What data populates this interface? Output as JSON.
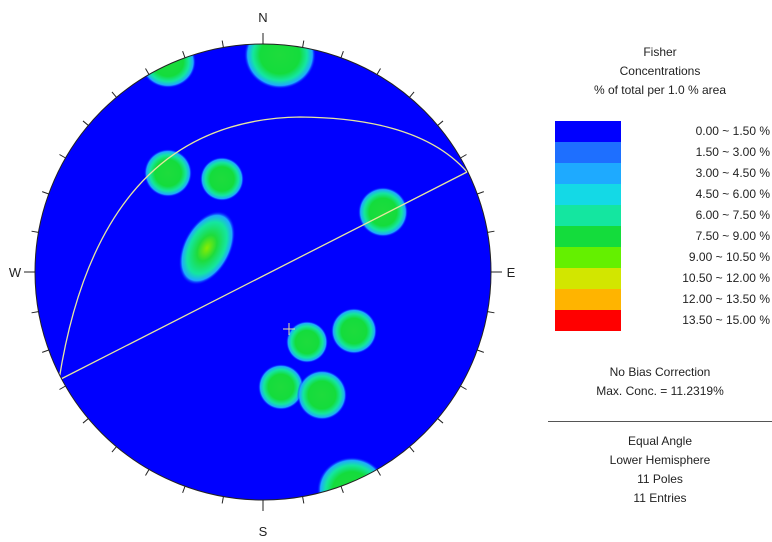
{
  "compass": {
    "north": "N",
    "south": "S",
    "east": "E",
    "west": "W"
  },
  "legend": {
    "title_lines": [
      "Fisher",
      "Concentrations",
      "% of total per 1.0 % area"
    ],
    "scale": [
      {
        "label": "0.00 ~  1.50 %",
        "color": "#0000ff"
      },
      {
        "label": "1.50 ~  3.00 %",
        "color": "#1e6fff"
      },
      {
        "label": "3.00 ~  4.50 %",
        "color": "#1eaaff"
      },
      {
        "label": "4.50 ~  6.00 %",
        "color": "#14d9e6"
      },
      {
        "label": "6.00 ~  7.50 %",
        "color": "#14e6a0"
      },
      {
        "label": "7.50 ~  9.00 %",
        "color": "#14dc3c"
      },
      {
        "label": "9.00 ~ 10.50 %",
        "color": "#64f000"
      },
      {
        "label": "10.50 ~ 12.00 %",
        "color": "#d2e600"
      },
      {
        "label": "12.00 ~ 13.50 %",
        "color": "#ffb400"
      },
      {
        "label": "13.50 ~ 15.00 %",
        "color": "#ff0000"
      }
    ]
  },
  "stats": {
    "bias": "No Bias Correction",
    "max_conc": "Max. Conc. = 11.2319%"
  },
  "projection": {
    "lines": [
      "Equal Angle",
      "Lower Hemisphere",
      "11 Poles",
      "11 Entries"
    ]
  },
  "colors": {
    "background_fill": "#0000ff",
    "great_circle": "#e6e6a0",
    "outline": "#222222"
  }
}
